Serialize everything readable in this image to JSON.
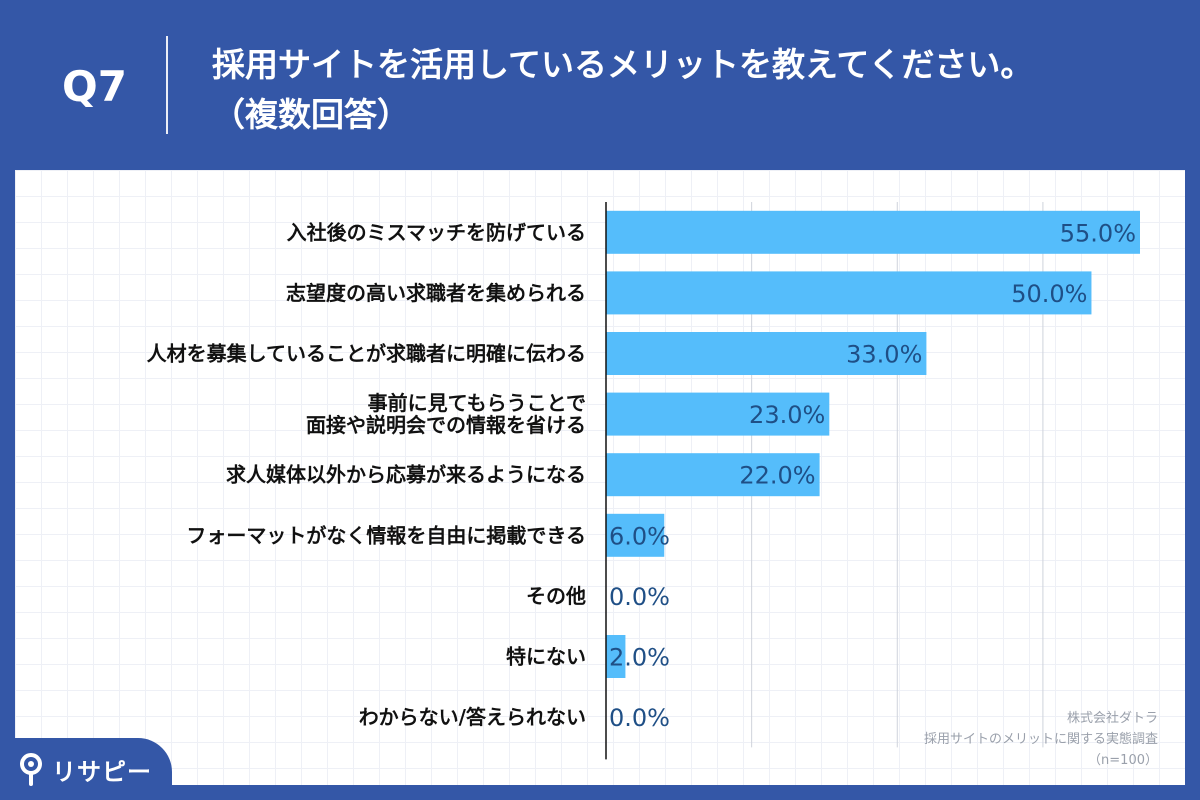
{
  "header": {
    "question_no": "Q7",
    "title_line1": "採用サイトを活用しているメリットを教えてください。",
    "title_line2": "（複数回答）"
  },
  "credit": {
    "company": "株式会社ダトラ",
    "survey": "採用サイトのメリットに関する実態調査",
    "sample": "（n=100）"
  },
  "brand": {
    "name": "リサピー",
    "icon": "pin-icon"
  },
  "colors": {
    "header_bg": "#3457a7",
    "bar": "#55bdfb",
    "value_text": "#1f4f86",
    "label_text": "#111111",
    "grid_line": "#cfd3dc",
    "axis": "#111111"
  },
  "chart_data": {
    "type": "bar",
    "orientation": "horizontal",
    "categories": [
      [
        "入社後のミスマッチを防げている"
      ],
      [
        "志望度の高い求職者を集められる"
      ],
      [
        "人材を募集していることが求職者に明確に伝わる"
      ],
      [
        "事前に見てもらうことで",
        "面接や説明会での情報を省ける"
      ],
      [
        "求人媒体以外から応募が来るようになる"
      ],
      [
        "フォーマットがなく情報を自由に掲載できる"
      ],
      [
        "その他"
      ],
      [
        "特にない"
      ],
      [
        "わからない/答えられない"
      ]
    ],
    "values": [
      55.0,
      50.0,
      33.0,
      23.0,
      22.0,
      6.0,
      0.0,
      2.0,
      0.0
    ],
    "value_labels": [
      "55.0%",
      "50.0%",
      "33.0%",
      "23.0%",
      "22.0%",
      "6.0%",
      "0.0%",
      "2.0%",
      "0.0%"
    ],
    "xlim": [
      0,
      55
    ],
    "gridlines_at": [
      15,
      30,
      45
    ],
    "grid": true,
    "legend": false
  }
}
